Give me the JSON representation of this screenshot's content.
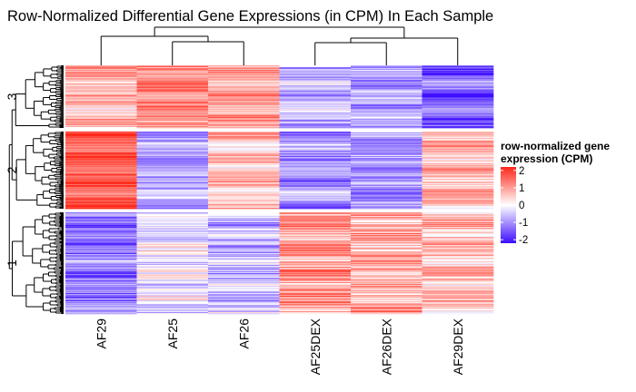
{
  "chart_data": {
    "type": "heatmap",
    "title": "Row-Normalized Differential Gene Expressions (in CPM) In Each Sample",
    "columns": [
      "AF29",
      "AF25",
      "AF26",
      "AF25DEX",
      "AF26DEX",
      "AF29DEX"
    ],
    "row_clusters_top_to_bottom": [
      {
        "label": "3",
        "rows": 70,
        "mean_pattern": [
          0.7,
          1.3,
          0.9,
          -0.6,
          -0.9,
          -1.4
        ]
      },
      {
        "label": "2",
        "rows": 88,
        "mean_pattern": [
          1.7,
          -0.8,
          0.6,
          -0.9,
          -1.0,
          0.7
        ]
      },
      {
        "label": "1",
        "rows": 112,
        "mean_pattern": [
          -1.2,
          -0.2,
          -0.6,
          1.0,
          0.8,
          0.6
        ]
      }
    ],
    "column_dendrogram": {
      "groups": [
        [
          "AF29",
          [
            "AF25",
            "AF26"
          ]
        ],
        [
          [
            "AF25DEX",
            "AF26DEX"
          ],
          "AF29DEX"
        ]
      ]
    },
    "row_dendrogram": "left",
    "color_scale": {
      "title_lines": [
        "row-normalized gene",
        "expression (CPM)"
      ],
      "ticks": [
        "2",
        "1",
        "0",
        "-1",
        "-2"
      ],
      "tick_values": [
        2,
        1,
        0,
        -1,
        -2
      ],
      "range": [
        -2.2,
        2.2
      ],
      "low_color": "#3d0dff",
      "mid_color": "#ffffff",
      "high_color": "#ff2718"
    },
    "legend_placement": "right"
  }
}
